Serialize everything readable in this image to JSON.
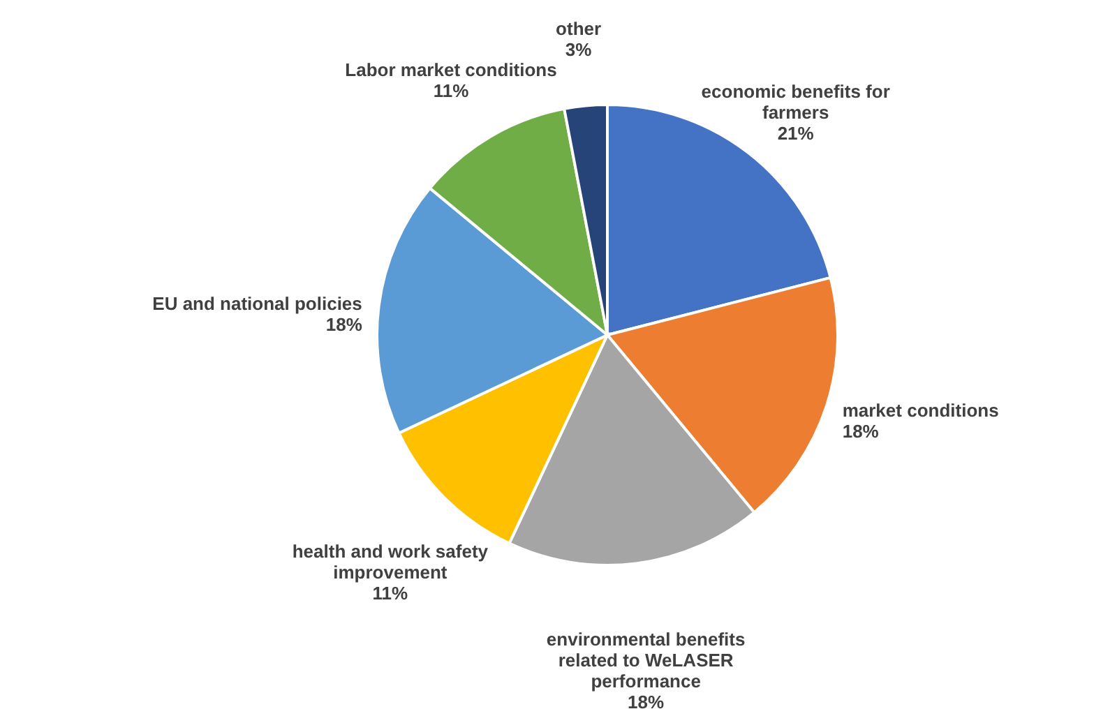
{
  "chart_data": {
    "type": "pie",
    "categories": [
      "economic benefits for farmers",
      "market conditions",
      "environmental benefits related to WeLASER performance",
      "health and work safety improvement",
      "EU and national policies",
      "Labor market conditions",
      "other"
    ],
    "values": [
      21,
      18,
      18,
      11,
      18,
      11,
      3
    ],
    "colors": [
      "#4472c4",
      "#ed7d31",
      "#a5a5a5",
      "#ffc000",
      "#5b9bd5",
      "#70ad47",
      "#264478"
    ],
    "value_labels": [
      "21%",
      "18%",
      "18%",
      "11%",
      "18%",
      "11%",
      "3%"
    ]
  }
}
